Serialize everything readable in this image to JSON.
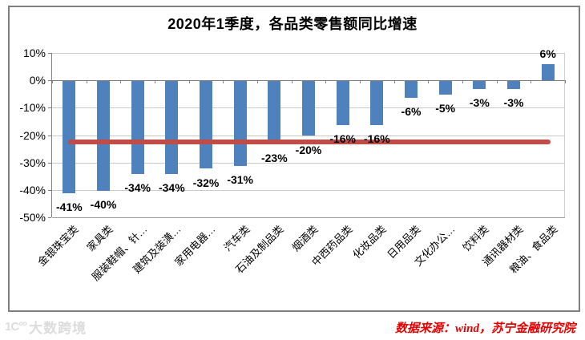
{
  "title": "2020年1季度，各品类零售额同比增速",
  "source": {
    "text": "数据来源：wind，苏宁金融研究院",
    "color": "#e60000"
  },
  "watermark": {
    "logo": "1C°°",
    "text": "大数跨境"
  },
  "chart_data": {
    "type": "bar",
    "title": "2020年1季度，各品类零售额同比增速",
    "categories": [
      "金银珠宝类",
      "家具类",
      "服装鞋帽、针…",
      "建筑及装潢…",
      "家用电器…",
      "汽车类",
      "石油及制品类",
      "烟酒类",
      "中西药品类",
      "化妆品类",
      "日用品类",
      "文化办公…",
      "饮料类",
      "通讯器材类",
      "粮油、食品类"
    ],
    "values": [
      -41,
      -40,
      -34,
      -34,
      -32,
      -31,
      -23,
      -20,
      -16,
      -16,
      -6,
      -5,
      -3,
      -3,
      6
    ],
    "value_labels": [
      "-41%",
      "-40%",
      "-34%",
      "-34%",
      "-32%",
      "-31%",
      "-23%",
      "-20%",
      "-16%",
      "-16%",
      "-6%",
      "-5%",
      "-3%",
      "-3%",
      "6%"
    ],
    "unit": "%",
    "ylim": [
      -50,
      10
    ],
    "ytick_values": [
      10,
      0,
      -10,
      -20,
      -30,
      -40,
      -50
    ],
    "ytick_labels": [
      "10%",
      "0%",
      "-10%",
      "-20%",
      "-30%",
      "-40%",
      "-50%"
    ],
    "grid": true,
    "legend": "none",
    "bar_color": "#4f81bd",
    "reference_line": {
      "value": -22.5,
      "color": "#bf4c47",
      "note": "horizontal red line across chart at about -22%"
    }
  }
}
